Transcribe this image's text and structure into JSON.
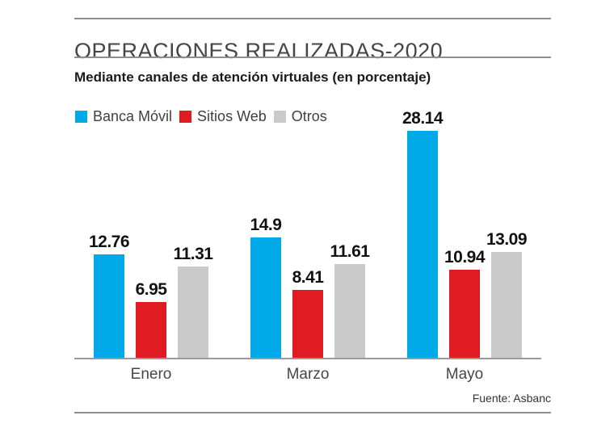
{
  "header": {
    "title": "OPERACIONES REALIZADAS-2020",
    "subtitle": "Mediante canales de atención virtuales (en porcentaje)"
  },
  "source": "Fuente: Asbanc",
  "colors": {
    "banca_movil": "#00a9e8",
    "sitios_web": "#e11b22",
    "otros": "#cacaca",
    "axis": "#9a9a9a"
  },
  "chart_data": {
    "type": "bar",
    "title": "OPERACIONES REALIZADAS-2020",
    "subtitle": "Mediante canales de atención virtuales (en porcentaje)",
    "categories": [
      "Enero",
      "Marzo",
      "Mayo"
    ],
    "series": [
      {
        "name": "Banca Móvil",
        "color": "#00a9e8",
        "values": [
          12.76,
          14.9,
          28.14
        ]
      },
      {
        "name": "Sitios Web",
        "color": "#e11b22",
        "values": [
          6.95,
          8.41,
          10.94
        ]
      },
      {
        "name": "Otros",
        "color": "#cacaca",
        "values": [
          11.31,
          11.61,
          13.09
        ]
      }
    ],
    "ylim": [
      0,
      30
    ],
    "grid": false,
    "value_labels": true,
    "legend_position": "top-left",
    "source": "Fuente: Asbanc"
  }
}
